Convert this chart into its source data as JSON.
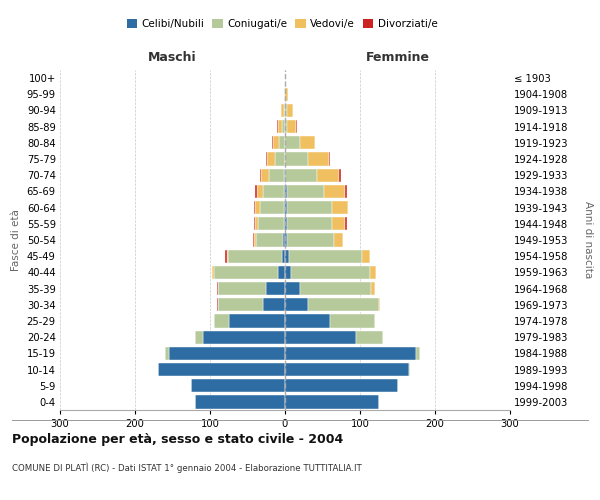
{
  "age_groups": [
    "0-4",
    "5-9",
    "10-14",
    "15-19",
    "20-24",
    "25-29",
    "30-34",
    "35-39",
    "40-44",
    "45-49",
    "50-54",
    "55-59",
    "60-64",
    "65-69",
    "70-74",
    "75-79",
    "80-84",
    "85-89",
    "90-94",
    "95-99",
    "100+"
  ],
  "birth_years": [
    "1999-2003",
    "1994-1998",
    "1989-1993",
    "1984-1988",
    "1979-1983",
    "1974-1978",
    "1969-1973",
    "1964-1968",
    "1959-1963",
    "1954-1958",
    "1949-1953",
    "1944-1948",
    "1939-1943",
    "1934-1938",
    "1929-1933",
    "1924-1928",
    "1919-1923",
    "1914-1918",
    "1909-1913",
    "1904-1908",
    "≤ 1903"
  ],
  "colors": {
    "celibi": "#2e6da4",
    "coniugati": "#b5c99a",
    "vedovi": "#f0c060",
    "divorziati": "#cc2222"
  },
  "males": {
    "celibi": [
      120,
      125,
      170,
      155,
      110,
      75,
      30,
      25,
      10,
      4,
      3,
      2,
      2,
      2,
      2,
      0,
      0,
      0,
      0,
      0,
      0
    ],
    "coniugati": [
      0,
      0,
      0,
      5,
      10,
      20,
      60,
      65,
      85,
      72,
      36,
      34,
      32,
      28,
      20,
      14,
      8,
      4,
      2,
      0,
      0
    ],
    "vedovi": [
      0,
      0,
      0,
      0,
      0,
      0,
      0,
      0,
      2,
      2,
      3,
      4,
      6,
      8,
      10,
      10,
      8,
      6,
      4,
      2,
      0
    ],
    "divorziati": [
      0,
      0,
      0,
      0,
      0,
      0,
      1,
      1,
      1,
      2,
      1,
      2,
      2,
      2,
      2,
      2,
      2,
      1,
      0,
      0,
      0
    ]
  },
  "females": {
    "celibi": [
      125,
      150,
      165,
      175,
      95,
      60,
      30,
      20,
      8,
      5,
      3,
      2,
      2,
      2,
      0,
      0,
      0,
      0,
      0,
      0,
      0
    ],
    "coniugati": [
      0,
      0,
      2,
      5,
      35,
      60,
      95,
      95,
      105,
      98,
      62,
      60,
      60,
      50,
      42,
      30,
      20,
      2,
      2,
      0,
      0
    ],
    "vedovi": [
      0,
      0,
      0,
      0,
      0,
      0,
      2,
      5,
      8,
      10,
      12,
      18,
      22,
      28,
      30,
      28,
      20,
      12,
      8,
      4,
      0
    ],
    "divorziati": [
      0,
      0,
      0,
      0,
      0,
      0,
      0,
      0,
      0,
      0,
      0,
      2,
      0,
      2,
      2,
      2,
      0,
      2,
      0,
      0,
      0
    ]
  },
  "xlim": 300,
  "title": "Popolazione per età, sesso e stato civile - 2004",
  "subtitle": "COMUNE DI PLATÌ (RC) - Dati ISTAT 1° gennaio 2004 - Elaborazione TUTTITALIA.IT",
  "ylabel_left": "Fasce di età",
  "ylabel_right": "Anni di nascita",
  "xlabel_left": "Maschi",
  "xlabel_right": "Femmine",
  "legend_labels": [
    "Celibi/Nubili",
    "Coniugati/e",
    "Vedovi/e",
    "Divorziati/e"
  ],
  "background_color": "#ffffff",
  "grid_color": "#c8c8c8"
}
